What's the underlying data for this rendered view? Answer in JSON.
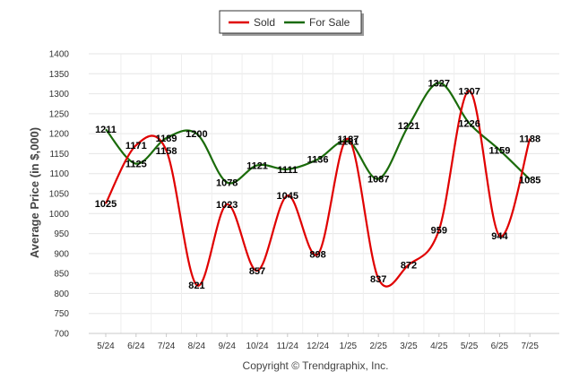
{
  "chart_data": {
    "type": "line",
    "title": "",
    "ylabel": "Average Price (in $,000)",
    "xlabel": "",
    "ylim": [
      700,
      1400
    ],
    "yticks": [
      700,
      750,
      800,
      850,
      900,
      950,
      1000,
      1050,
      1100,
      1150,
      1200,
      1250,
      1300,
      1350,
      1400
    ],
    "grid": true,
    "legend_position": "top-center",
    "categories": [
      "5/24",
      "6/24",
      "7/24",
      "8/24",
      "9/24",
      "10/24",
      "11/24",
      "12/24",
      "1/25",
      "2/25",
      "3/25",
      "4/25",
      "5/25",
      "6/25",
      "7/25"
    ],
    "series": [
      {
        "name": "Sold",
        "color": "#e00000",
        "values": [
          1025,
          1171,
          1158,
          821,
          1023,
          857,
          1045,
          898,
          1187,
          837,
          872,
          959,
          1307,
          944,
          1188
        ]
      },
      {
        "name": "For Sale",
        "color": "#1a6b0a",
        "values": [
          1211,
          1125,
          1189,
          1200,
          1078,
          1121,
          1111,
          1136,
          1181,
          1087,
          1221,
          1327,
          1226,
          1159,
          1085
        ]
      }
    ]
  },
  "footer": {
    "copyright": "Copyright © Trendgraphix, Inc."
  }
}
